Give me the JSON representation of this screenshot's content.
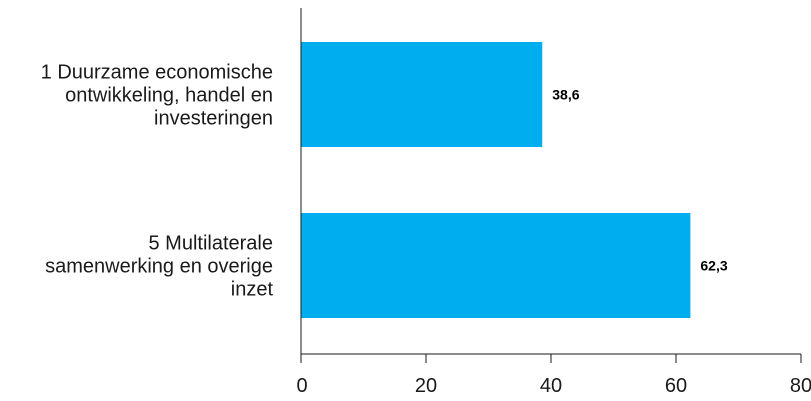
{
  "chart_data": {
    "type": "bar",
    "orientation": "horizontal",
    "categories": [
      [
        "1 Duurzame economische",
        "ontwikkeling, handel en",
        "investeringen"
      ],
      [
        "5 Multilaterale",
        "samenwerking en overige",
        "inzet"
      ]
    ],
    "values": [
      38.6,
      62.3
    ],
    "value_labels": [
      "38,6",
      "62,3"
    ],
    "xlim": [
      0,
      80
    ],
    "xticks": [
      0,
      20,
      40,
      60,
      80
    ],
    "grid": false,
    "legend": "none",
    "colors": {
      "bar": "#00adef",
      "axis": "#1a1a1a"
    }
  }
}
